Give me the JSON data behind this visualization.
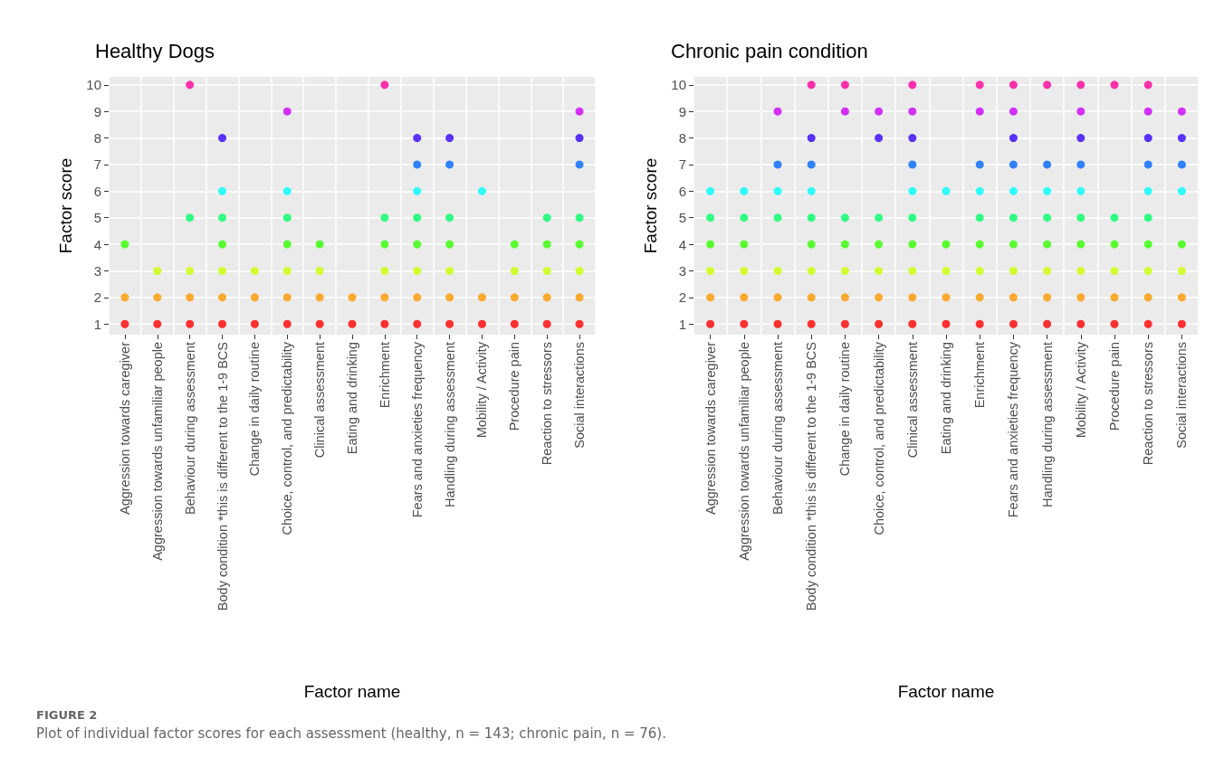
{
  "chart_data": [
    {
      "type": "scatter",
      "title": "Healthy Dogs",
      "xlabel": "Factor name",
      "ylabel": "Factor score",
      "categories": [
        "Aggression towards caregiver",
        "Aggression towards unfamiliar people",
        "Behaviour during assessment",
        "Body condition *this is different to the 1-9 BCS",
        "Change in daily routine",
        "Choice, control, and predictability",
        "Clinical assessment",
        "Eating and drinking",
        "Enrichment",
        "Fears and anxieties frequency",
        "Handling during assessment",
        "Mobility / Activity",
        "Procedure pain",
        "Reaction to stressors",
        "Social interactions"
      ],
      "series": [
        {
          "color": "#ff0000",
          "values": [
            1,
            1,
            1,
            1,
            1,
            1,
            1,
            1,
            1,
            1,
            1,
            1,
            1,
            1,
            1
          ]
        },
        {
          "color": "#ff9900",
          "values": [
            2,
            2,
            2,
            2,
            2,
            2,
            2,
            2,
            2,
            2,
            2,
            2,
            2,
            2,
            2
          ]
        },
        {
          "color": "#ccff00",
          "values": [
            null,
            3,
            3,
            3,
            3,
            3,
            3,
            null,
            3,
            3,
            3,
            null,
            3,
            3,
            3
          ]
        },
        {
          "color": "#33ff00",
          "values": [
            4,
            null,
            null,
            4,
            null,
            4,
            4,
            null,
            4,
            4,
            4,
            null,
            4,
            4,
            4
          ]
        },
        {
          "color": "#00ff66",
          "values": [
            null,
            null,
            5,
            5,
            null,
            5,
            null,
            null,
            5,
            5,
            5,
            null,
            null,
            5,
            5
          ]
        },
        {
          "color": "#00ffff",
          "values": [
            null,
            null,
            null,
            6,
            null,
            6,
            null,
            null,
            null,
            6,
            null,
            6,
            null,
            null,
            null
          ]
        },
        {
          "color": "#0066ff",
          "values": [
            null,
            null,
            null,
            null,
            null,
            null,
            null,
            null,
            null,
            7,
            7,
            null,
            null,
            null,
            7
          ]
        },
        {
          "color": "#3300ff",
          "values": [
            null,
            null,
            null,
            8,
            null,
            null,
            null,
            null,
            null,
            8,
            8,
            null,
            null,
            null,
            8
          ]
        },
        {
          "color": "#cc00ff",
          "values": [
            null,
            null,
            null,
            null,
            null,
            9,
            null,
            null,
            null,
            null,
            null,
            null,
            null,
            null,
            9
          ]
        },
        {
          "color": "#ff0099",
          "values": [
            null,
            null,
            10,
            null,
            null,
            null,
            null,
            null,
            10,
            null,
            null,
            null,
            null,
            null,
            null
          ]
        }
      ],
      "ylim": [
        0.6,
        10.3
      ],
      "yticks": [
        1,
        2,
        3,
        4,
        5,
        6,
        7,
        8,
        9,
        10
      ],
      "grid": true,
      "marker": "circle",
      "annotations": [
        "FIGURE 2",
        "Plot of individual factor scores for each assessment (healthy, n = 143; chronic pain, n = 76)."
      ]
    },
    {
      "type": "scatter",
      "title": "Chronic pain condition",
      "xlabel": "Factor name",
      "ylabel": "Factor score",
      "categories": [
        "Aggression towards caregiver",
        "Aggression towards unfamiliar people",
        "Behaviour during assessment",
        "Body condition *this is different to the 1-9 BCS",
        "Change in daily routine",
        "Choice, control, and predictability",
        "Clinical assessment",
        "Eating and drinking",
        "Enrichment",
        "Fears and anxieties frequency",
        "Handling during assessment",
        "Mobility / Activity",
        "Procedure pain",
        "Reaction to stressors",
        "Social interactions"
      ],
      "series": [
        {
          "color": "#ff0000",
          "values": [
            1,
            1,
            1,
            1,
            1,
            1,
            1,
            1,
            1,
            1,
            1,
            1,
            1,
            1,
            1
          ]
        },
        {
          "color": "#ff9900",
          "values": [
            2,
            2,
            2,
            2,
            2,
            2,
            2,
            2,
            2,
            2,
            2,
            2,
            2,
            2,
            2
          ]
        },
        {
          "color": "#ccff00",
          "values": [
            3,
            3,
            3,
            3,
            3,
            3,
            3,
            3,
            3,
            3,
            3,
            3,
            3,
            3,
            3
          ]
        },
        {
          "color": "#33ff00",
          "values": [
            4,
            4,
            null,
            4,
            4,
            4,
            4,
            4,
            4,
            4,
            4,
            4,
            4,
            4,
            4
          ]
        },
        {
          "color": "#00ff66",
          "values": [
            5,
            5,
            5,
            5,
            5,
            5,
            5,
            null,
            5,
            5,
            5,
            5,
            5,
            5,
            null
          ]
        },
        {
          "color": "#00ffff",
          "values": [
            6,
            6,
            6,
            6,
            null,
            null,
            6,
            6,
            6,
            6,
            6,
            6,
            null,
            6,
            6
          ]
        },
        {
          "color": "#0066ff",
          "values": [
            null,
            null,
            7,
            7,
            null,
            null,
            7,
            null,
            7,
            7,
            7,
            7,
            null,
            7,
            7
          ]
        },
        {
          "color": "#3300ff",
          "values": [
            null,
            null,
            null,
            8,
            null,
            8,
            8,
            null,
            null,
            8,
            null,
            8,
            null,
            8,
            8
          ]
        },
        {
          "color": "#cc00ff",
          "values": [
            null,
            null,
            9,
            null,
            9,
            9,
            9,
            null,
            9,
            9,
            null,
            9,
            null,
            9,
            9
          ]
        },
        {
          "color": "#ff0099",
          "values": [
            null,
            null,
            null,
            10,
            10,
            null,
            10,
            null,
            10,
            10,
            10,
            10,
            10,
            10,
            null
          ]
        }
      ],
      "ylim": [
        0.6,
        10.3
      ],
      "yticks": [
        1,
        2,
        3,
        4,
        5,
        6,
        7,
        8,
        9,
        10
      ],
      "grid": true,
      "marker": "circle"
    }
  ]
}
